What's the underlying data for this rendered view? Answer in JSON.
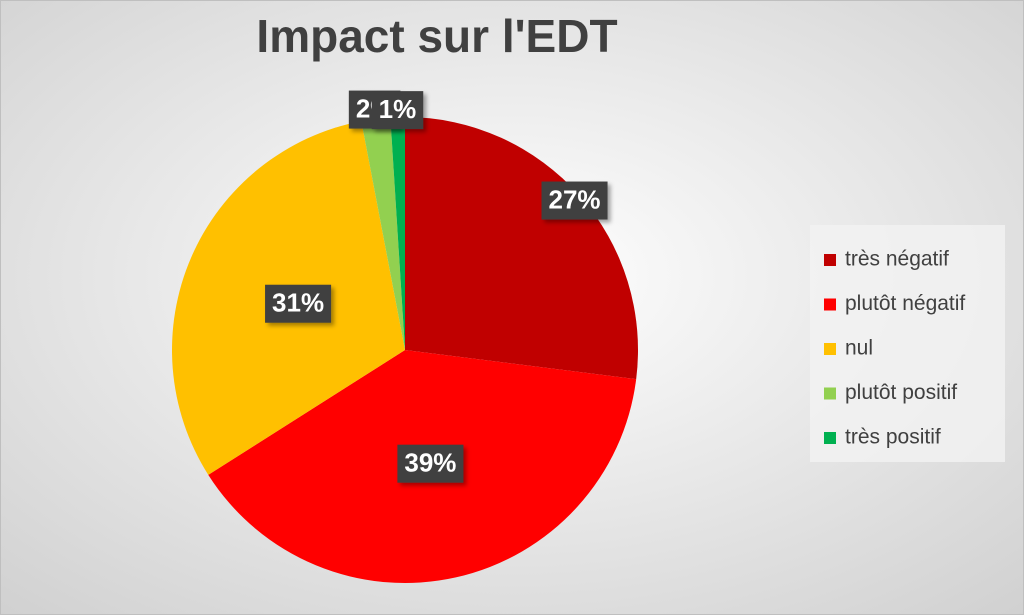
{
  "chart_data": {
    "type": "pie",
    "title": "Impact sur l'EDT",
    "categories": [
      "très négatif",
      "plutôt négatif",
      "nul",
      "plutôt positif",
      "très positif"
    ],
    "values": [
      27,
      39,
      31,
      2,
      1
    ],
    "value_labels": [
      "27%",
      "39%",
      "31%",
      "2%",
      "1%"
    ],
    "colors": [
      "#c00000",
      "#ff0000",
      "#ffc000",
      "#92d050",
      "#00b050"
    ],
    "legend": "right"
  }
}
